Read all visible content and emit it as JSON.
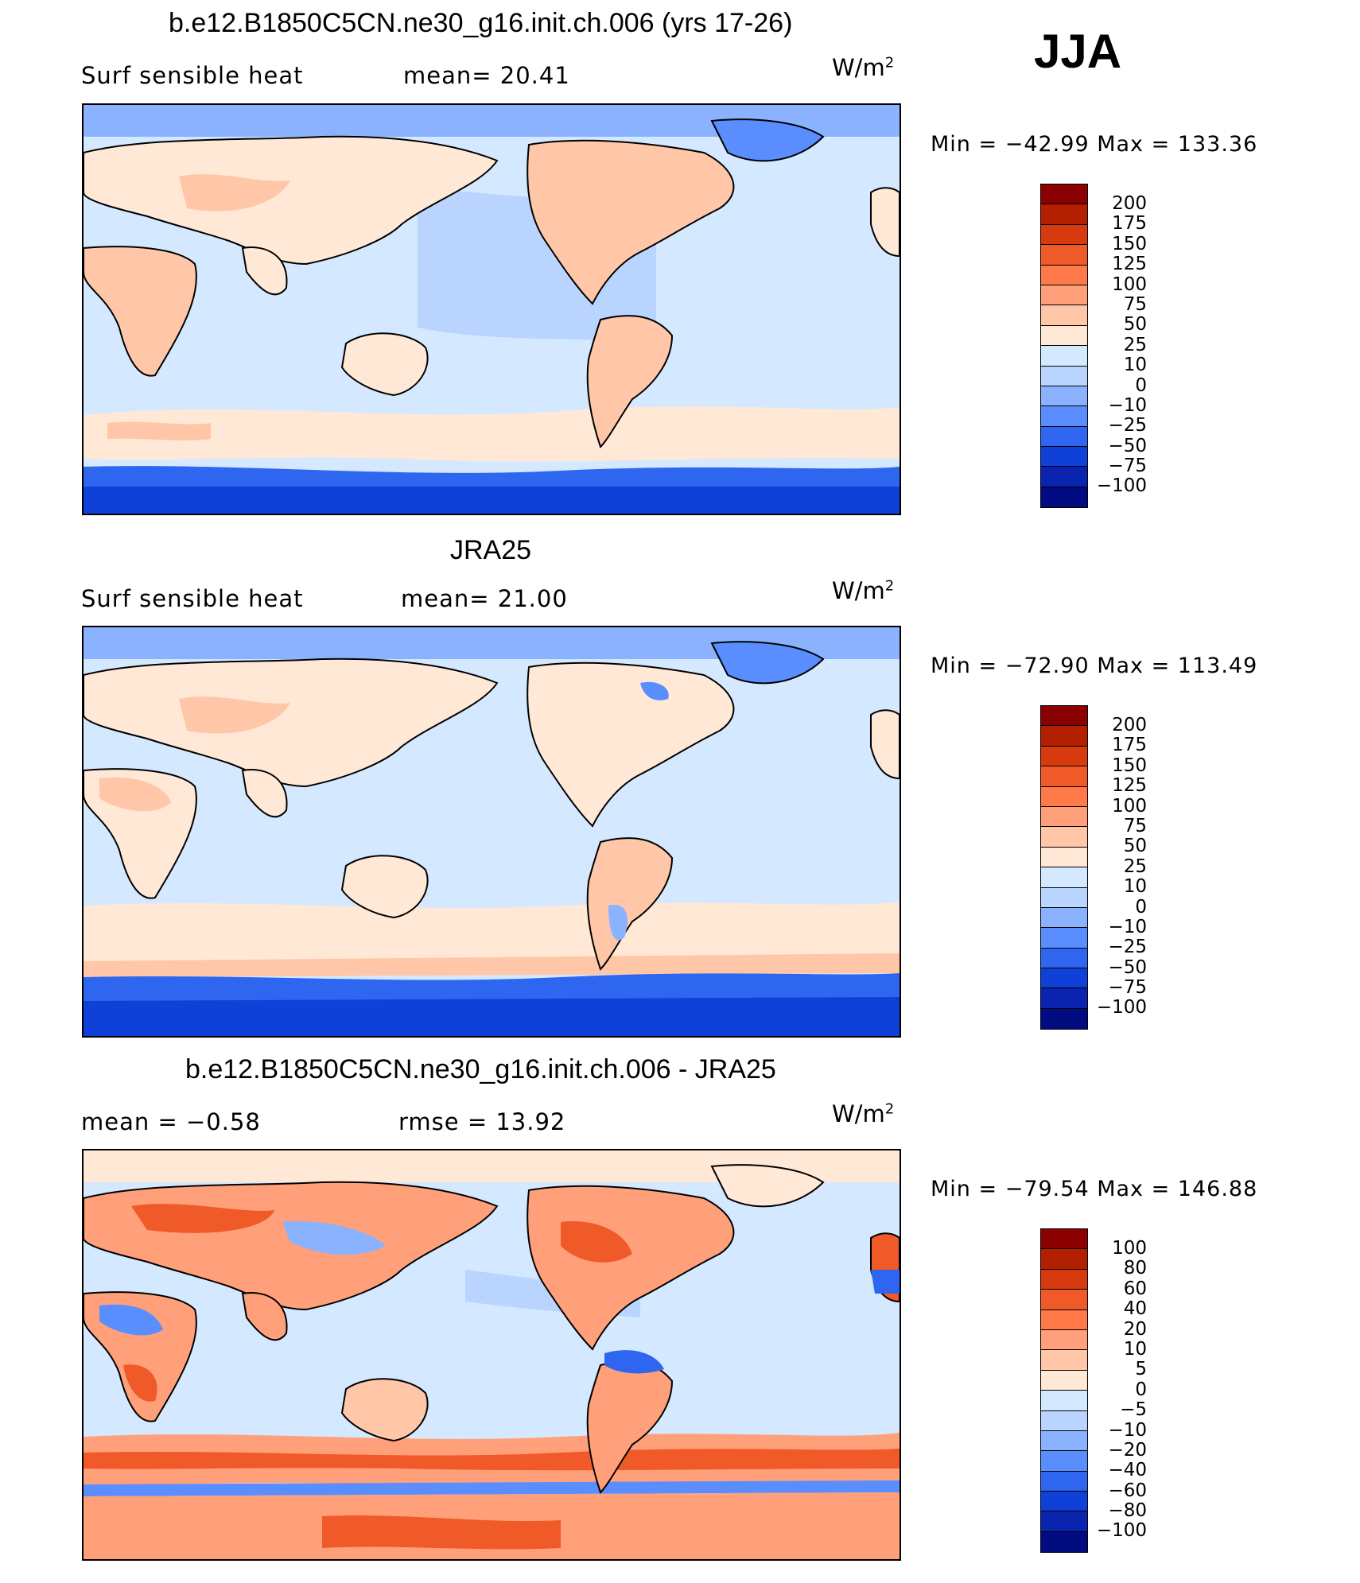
{
  "season": "JJA",
  "units_main": "W/m",
  "units_sup": "2",
  "panels": [
    {
      "title": "b.e12.B1850C5CN.ne30_g16.init.ch.006 (yrs 17-26)",
      "left_label": "Surf  sensible  heat",
      "right_label": "mean=   20.41",
      "minmax": "Min  =  −42.99  Max  =  133.36",
      "levels": [
        "200",
        "175",
        "150",
        "125",
        "100",
        "75",
        "50",
        "25",
        "10",
        "0",
        "−10",
        "−25",
        "−50",
        "−75",
        "−100"
      ],
      "colors": [
        "#8b0000",
        "#b22000",
        "#d83a10",
        "#f05a28",
        "#ff7a48",
        "#ffa07a",
        "#ffc6a8",
        "#ffe8d6",
        "#d4e8ff",
        "#b8d4ff",
        "#8ab2ff",
        "#5a8eff",
        "#2e66f0",
        "#0f40d8",
        "#0a24b0",
        "#000c80"
      ]
    },
    {
      "title": "JRA25",
      "left_label": "Surf  sensible  heat",
      "right_label": "mean=   21.00",
      "minmax": "Min  =  −72.90  Max  =  113.49",
      "levels": [
        "200",
        "175",
        "150",
        "125",
        "100",
        "75",
        "50",
        "25",
        "10",
        "0",
        "−10",
        "−25",
        "−50",
        "−75",
        "−100"
      ],
      "colors": [
        "#8b0000",
        "#b22000",
        "#d83a10",
        "#f05a28",
        "#ff7a48",
        "#ffa07a",
        "#ffc6a8",
        "#ffe8d6",
        "#d4e8ff",
        "#b8d4ff",
        "#8ab2ff",
        "#5a8eff",
        "#2e66f0",
        "#0f40d8",
        "#0a24b0",
        "#000c80"
      ]
    },
    {
      "title": "b.e12.B1850C5CN.ne30_g16.init.ch.006 - JRA25",
      "left_label": "mean  =    −0.58",
      "right_label": "rmse  =    13.92",
      "minmax": "Min  =  −79.54  Max  =  146.88",
      "levels": [
        "100",
        "80",
        "60",
        "40",
        "20",
        "10",
        "5",
        "0",
        "−5",
        "−10",
        "−20",
        "−40",
        "−60",
        "−80",
        "−100"
      ],
      "colors": [
        "#8b0000",
        "#b22000",
        "#d83a10",
        "#f05a28",
        "#ff7a48",
        "#ffa07a",
        "#ffc6a8",
        "#ffe8d6",
        "#d4e8ff",
        "#b8d4ff",
        "#8ab2ff",
        "#5a8eff",
        "#2e66f0",
        "#0f40d8",
        "#0a24b0",
        "#000c80"
      ]
    }
  ]
}
